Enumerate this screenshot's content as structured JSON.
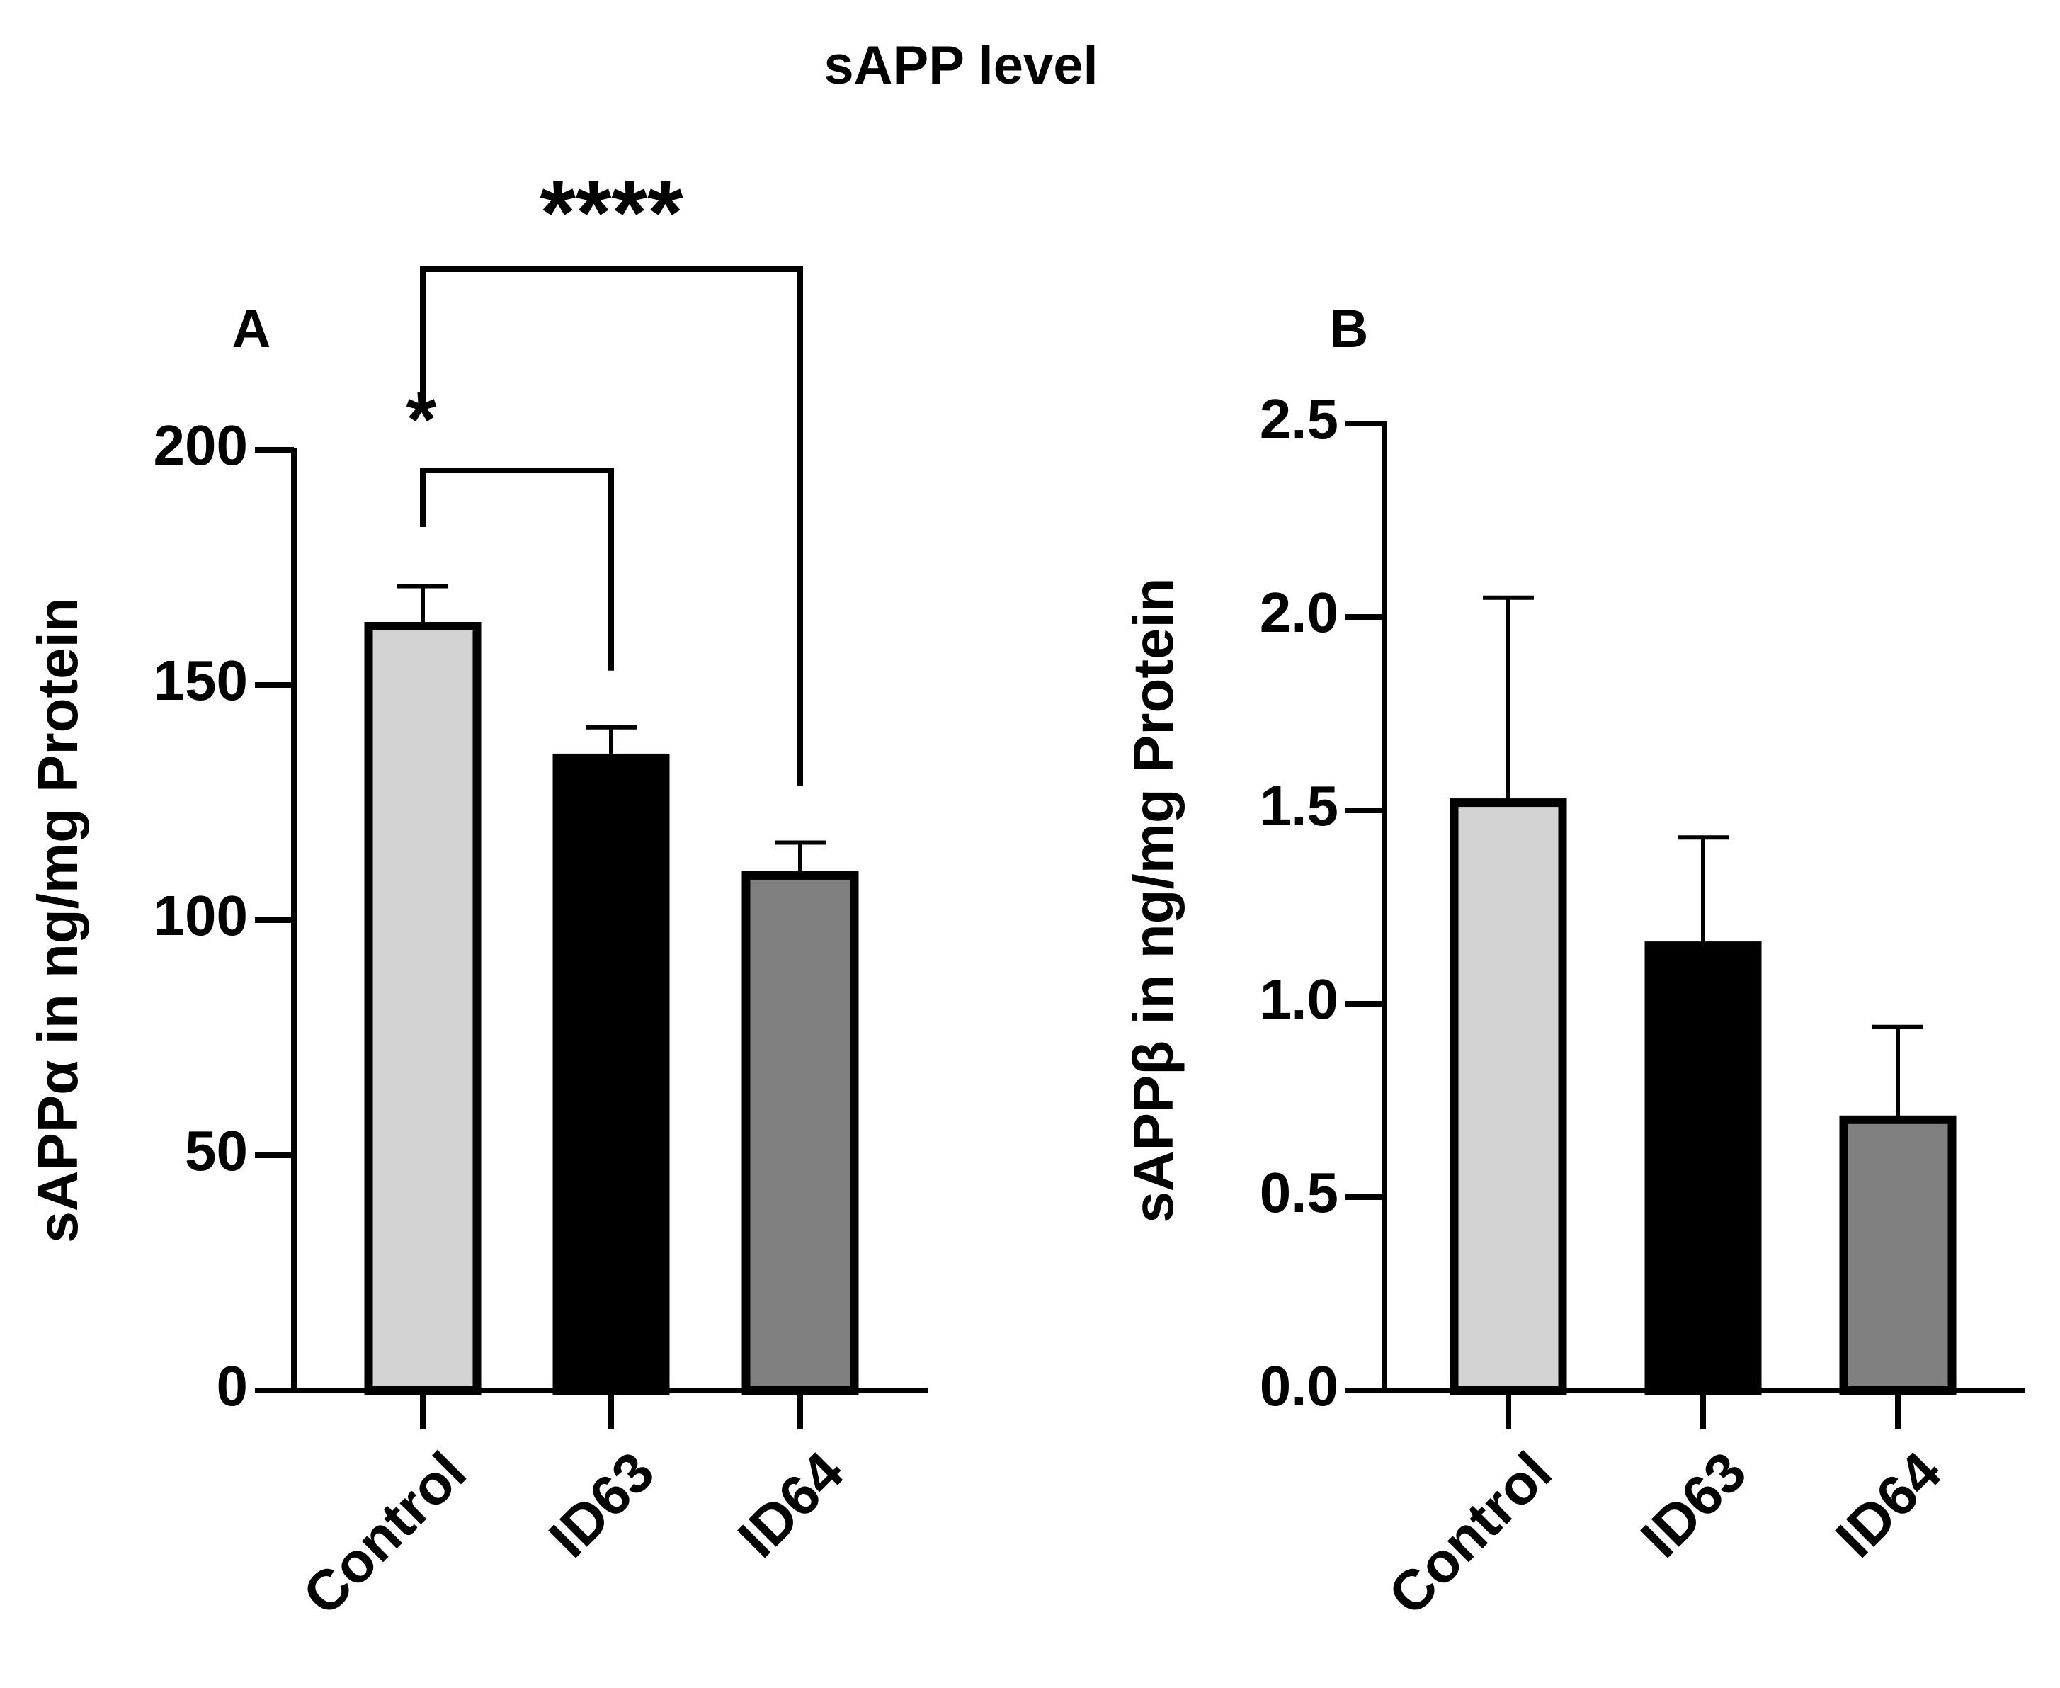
{
  "figure_title": "sAPP level",
  "chart_data": [
    {
      "type": "bar",
      "panel_label": "A",
      "title": "",
      "categories": [
        "Control",
        "ID63",
        "ID64"
      ],
      "values": [
        162.5,
        134.5,
        109.5
      ],
      "errors": [
        8.5,
        6.5,
        7.0
      ],
      "colors": [
        "#d3d3d3",
        "#000000",
        "#808080"
      ],
      "xlabel": "",
      "ylabel": "sAPPα in ng/mg Protein",
      "ylim": [
        0,
        200
      ],
      "yticks": [
        0,
        50,
        100,
        150,
        200
      ],
      "ytick_labels": [
        "0",
        "50",
        "100",
        "150",
        "200"
      ],
      "significance": [
        {
          "from": 0,
          "to": 1,
          "label": "*"
        },
        {
          "from": 0,
          "to": 2,
          "label": "****"
        }
      ]
    },
    {
      "type": "bar",
      "panel_label": "B",
      "title": "",
      "categories": [
        "Control",
        "ID63",
        "ID64"
      ],
      "values": [
        1.52,
        1.15,
        0.7
      ],
      "errors": [
        0.53,
        0.28,
        0.24
      ],
      "colors": [
        "#d3d3d3",
        "#000000",
        "#808080"
      ],
      "xlabel": "",
      "ylabel": "sAPPβ in ng/mg Protein",
      "ylim": [
        0,
        2.5
      ],
      "yticks": [
        0,
        0.5,
        1.0,
        1.5,
        2.0,
        2.5
      ],
      "ytick_labels": [
        "0.0",
        "0.5",
        "1.0",
        "1.5",
        "2.0",
        "2.5"
      ],
      "significance": []
    }
  ]
}
